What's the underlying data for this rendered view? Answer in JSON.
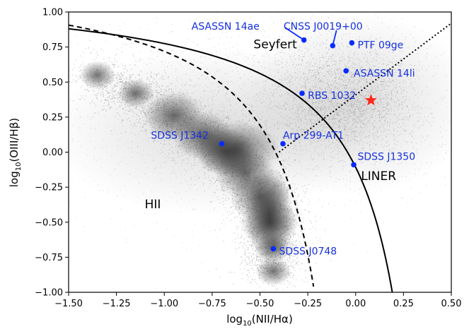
{
  "chart_data": {
    "type": "scatter",
    "title": "",
    "xlabel_parts": [
      "log",
      "10",
      "(NII/Hα)"
    ],
    "ylabel_parts": [
      "log",
      "10",
      "(OIII/Hβ)"
    ],
    "xlim": [
      -1.5,
      0.5
    ],
    "ylim": [
      -1.0,
      1.0
    ],
    "xticks": [
      -1.5,
      -1.25,
      -1.0,
      -0.75,
      -0.5,
      -0.25,
      0.0,
      0.25,
      0.5
    ],
    "yticks": [
      -1.0,
      -0.75,
      -0.5,
      -0.25,
      0.0,
      0.25,
      0.5,
      0.75,
      1.0
    ],
    "xtick_labels": [
      "−1.50",
      "−1.25",
      "−1.00",
      "−0.75",
      "−0.50",
      "−0.25",
      "0.00",
      "0.25",
      "0.50"
    ],
    "ytick_labels": [
      "−1.00",
      "−0.75",
      "−0.50",
      "−0.25",
      "0.00",
      "0.25",
      "0.50",
      "0.75",
      "1.00"
    ],
    "grid": false,
    "region_labels": [
      {
        "text": "Seyfert",
        "x": -0.42,
        "y": 0.77
      },
      {
        "text": "LINER",
        "x": 0.12,
        "y": -0.17
      },
      {
        "text": "HII",
        "x": -1.06,
        "y": -0.37
      }
    ],
    "points": [
      {
        "label": "ASASSN 14ae",
        "x": -0.27,
        "y": 0.8,
        "label_x": -0.68,
        "label_y": 0.9,
        "leader": true
      },
      {
        "label": "CNSS J0019+00",
        "x": -0.12,
        "y": 0.76,
        "label_x": -0.17,
        "label_y": 0.9,
        "leader": true
      },
      {
        "label": "PTF 09ge",
        "x": -0.02,
        "y": 0.78,
        "label_x": 0.01,
        "label_y": 0.765,
        "leader": false
      },
      {
        "label": "ASASSN 14li",
        "x": -0.05,
        "y": 0.58,
        "label_x": -0.01,
        "label_y": 0.565,
        "leader": false
      },
      {
        "label": "RBS 1032",
        "x": -0.28,
        "y": 0.42,
        "label_x": -0.25,
        "label_y": 0.405,
        "leader": false
      },
      {
        "label": "SDSS J1342",
        "x": -0.7,
        "y": 0.06,
        "label_x": -1.07,
        "label_y": 0.12,
        "leader": false
      },
      {
        "label": "Arp 299-AT1",
        "x": -0.38,
        "y": 0.06,
        "label_x": -0.38,
        "label_y": 0.12,
        "leader": false
      },
      {
        "label": "SDSS J1350",
        "x": -0.01,
        "y": -0.09,
        "label_x": 0.01,
        "label_y": -0.03,
        "leader": false
      },
      {
        "label": "SDSS J0748",
        "x": -0.43,
        "y": -0.69,
        "label_x": -0.4,
        "label_y": -0.705,
        "leader": false
      }
    ],
    "highlight_point": {
      "marker": "star",
      "x": 0.08,
      "y": 0.37
    },
    "curves": [
      {
        "name": "kewley",
        "style": "solid",
        "formula": "0.61/(x-0.47)+1.19"
      },
      {
        "name": "kauffmann",
        "style": "dashed",
        "formula": "0.61/(x-0.05)+1.3"
      },
      {
        "name": "seyfert-liner",
        "style": "dotted",
        "x_range": [
          -0.4,
          0.5
        ]
      }
    ],
    "colors": {
      "points": "#0a2bff",
      "labels": "#1530e0",
      "star": "#ff2a1a",
      "background_cloud": "#7a7a7a",
      "axis": "#000000"
    }
  }
}
